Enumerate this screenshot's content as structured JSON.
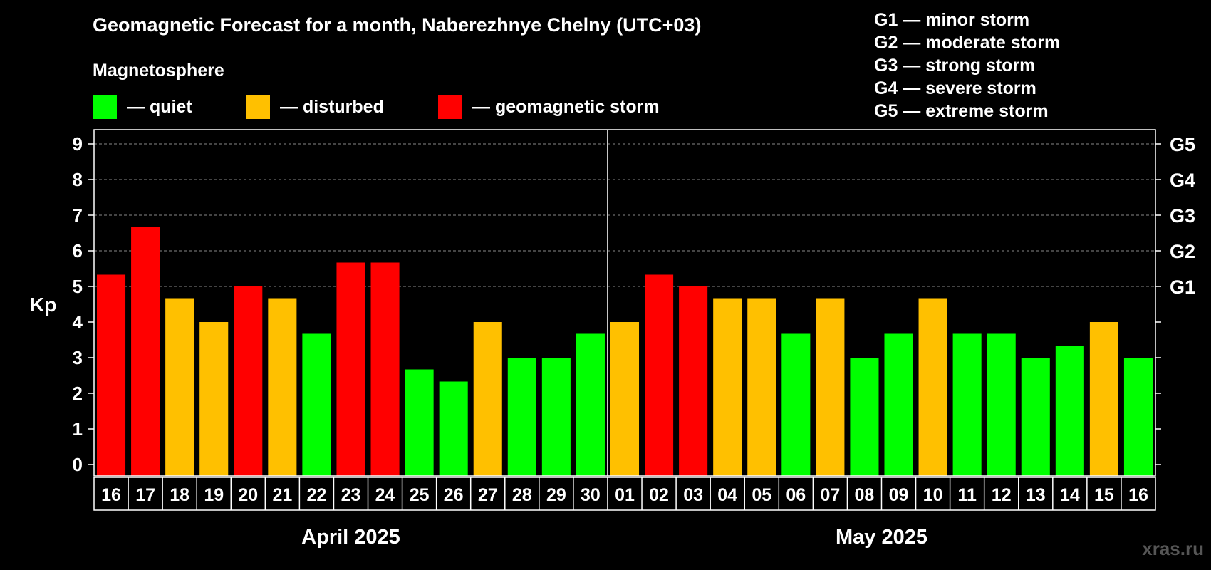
{
  "title": "Geomagnetic Forecast for a month, Naberezhnye Chelny (UTC+03)",
  "subtitle": "Magnetosphere",
  "legend": [
    {
      "label": "— quiet",
      "color": "#00ff00"
    },
    {
      "label": "— disturbed",
      "color": "#ffc000"
    },
    {
      "label": "— geomagnetic storm",
      "color": "#ff0000"
    }
  ],
  "storm_levels": [
    "G1 — minor storm",
    "G2 — moderate storm",
    "G3 — strong storm",
    "G4 — severe storm",
    "G5 — extreme storm"
  ],
  "watermark": "xras.ru",
  "colors": {
    "quiet": "#00ff00",
    "disturbed": "#ffc000",
    "storm": "#ff0000"
  },
  "chart_data": {
    "type": "bar",
    "ylabel": "Kp",
    "ylim": [
      0,
      9
    ],
    "yticks": [
      0,
      1,
      2,
      3,
      4,
      5,
      6,
      7,
      8,
      9
    ],
    "right_axis": [
      {
        "value": 5,
        "label": "G1"
      },
      {
        "value": 6,
        "label": "G2"
      },
      {
        "value": 7,
        "label": "G3"
      },
      {
        "value": 8,
        "label": "G4"
      },
      {
        "value": 9,
        "label": "G5"
      }
    ],
    "grid": true,
    "categories": [
      "16",
      "17",
      "18",
      "19",
      "20",
      "21",
      "22",
      "23",
      "24",
      "25",
      "26",
      "27",
      "28",
      "29",
      "30",
      "01",
      "02",
      "03",
      "04",
      "05",
      "06",
      "07",
      "08",
      "09",
      "10",
      "11",
      "12",
      "13",
      "14",
      "15",
      "16"
    ],
    "values": [
      5.33,
      6.67,
      4.67,
      4,
      5,
      4.67,
      3.67,
      5.67,
      5.67,
      2.67,
      2.33,
      4,
      3,
      3,
      3.67,
      4,
      5.33,
      5,
      4.67,
      4.67,
      3.67,
      4.67,
      3,
      3.67,
      4.67,
      3.67,
      3.67,
      3,
      3.33,
      4,
      3
    ],
    "status": [
      "storm",
      "storm",
      "disturbed",
      "disturbed",
      "storm",
      "disturbed",
      "quiet",
      "storm",
      "storm",
      "quiet",
      "quiet",
      "disturbed",
      "quiet",
      "quiet",
      "quiet",
      "disturbed",
      "storm",
      "storm",
      "disturbed",
      "disturbed",
      "quiet",
      "disturbed",
      "quiet",
      "quiet",
      "disturbed",
      "quiet",
      "quiet",
      "quiet",
      "quiet",
      "disturbed",
      "quiet"
    ],
    "months": [
      {
        "label": "April 2025",
        "start": 0,
        "count": 15
      },
      {
        "label": "May 2025",
        "start": 15,
        "count": 16
      }
    ]
  }
}
